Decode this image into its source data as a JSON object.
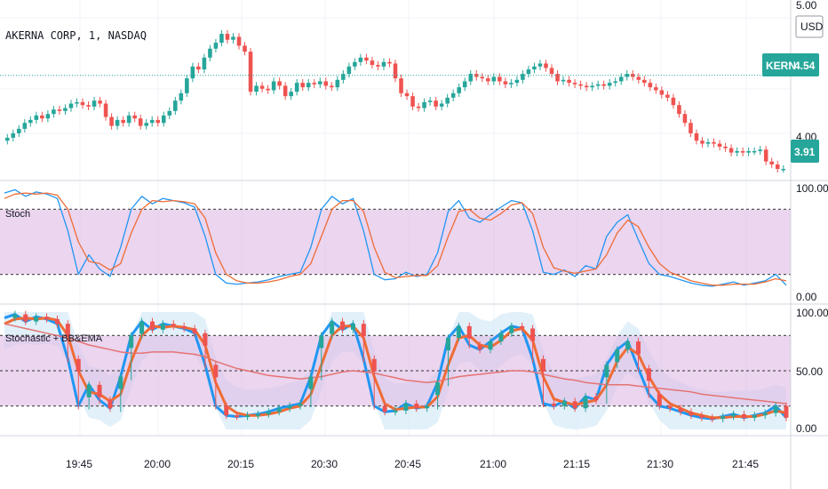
{
  "symbol_title": "AKERNA CORP, 1, NASDAQ",
  "currency": "USD",
  "last_ticker": "KERN",
  "last_price_label": "4.54",
  "current_price_label": "3.91",
  "price_axis_labels": [
    "5.00",
    "4.00"
  ],
  "osc_axis_labels": [
    "100.00",
    "0.00"
  ],
  "osc2_axis_labels": [
    "100.00",
    "50.00",
    "0.00"
  ],
  "panels": {
    "stoch": {
      "title": "Stoch"
    },
    "stoch_bb": {
      "title": "Stochastic + BB&EMA"
    }
  },
  "time_labels": [
    "19:45",
    "20:00",
    "20:15",
    "20:30",
    "20:45",
    "21:00",
    "21:15",
    "21:30",
    "21:45"
  ],
  "colors": {
    "up": "#26a69a",
    "down": "#ef5350",
    "k_line": "#2196f3",
    "d_line": "#ef6c36",
    "band_fill": "#e1bee7",
    "badge": "#26a69a",
    "ema": "#e57373"
  },
  "chart_data": [
    {
      "type": "candlestick",
      "title": "AKERNA CORP, 1, NASDAQ",
      "ylim": [
        3.85,
        5.0
      ],
      "close": [
        4.12,
        4.15,
        4.18,
        4.22,
        4.24,
        4.27,
        4.25,
        4.28,
        4.31,
        4.3,
        4.32,
        4.35,
        4.36,
        4.34,
        4.33,
        4.37,
        4.35,
        4.26,
        4.2,
        4.24,
        4.22,
        4.27,
        4.25,
        4.2,
        4.22,
        4.24,
        4.22,
        4.27,
        4.3,
        4.37,
        4.42,
        4.52,
        4.6,
        4.58,
        4.66,
        4.72,
        4.76,
        4.82,
        4.78,
        4.8,
        4.74,
        4.7,
        4.43,
        4.47,
        4.45,
        4.44,
        4.5,
        4.47,
        4.4,
        4.43,
        4.49,
        4.46,
        4.49,
        4.48,
        4.5,
        4.47,
        4.46,
        4.51,
        4.55,
        4.6,
        4.63,
        4.66,
        4.64,
        4.61,
        4.6,
        4.63,
        4.62,
        4.52,
        4.42,
        4.4,
        4.33,
        4.32,
        4.36,
        4.37,
        4.33,
        4.35,
        4.39,
        4.42,
        4.46,
        4.5,
        4.55,
        4.53,
        4.52,
        4.5,
        4.53,
        4.5,
        4.48,
        4.49,
        4.51,
        4.55,
        4.58,
        4.6,
        4.62,
        4.59,
        4.55,
        4.5,
        4.51,
        4.49,
        4.48,
        4.47,
        4.46,
        4.47,
        4.48,
        4.47,
        4.49,
        4.5,
        4.53,
        4.55,
        4.53,
        4.51,
        4.49,
        4.46,
        4.44,
        4.41,
        4.39,
        4.34,
        4.28,
        4.22,
        4.15,
        4.1,
        4.08,
        4.09,
        4.08,
        4.06,
        4.05,
        4.02,
        4.03,
        4.02,
        4.03,
        4.03,
        4.04,
        3.96,
        3.94,
        3.91,
        3.91
      ]
    },
    {
      "type": "line",
      "title": "Stoch",
      "ylim": [
        0,
        100
      ],
      "levels": [
        80,
        20
      ],
      "series": [
        {
          "values": [
            95,
            98,
            92,
            96,
            94,
            90,
            60,
            20,
            38,
            25,
            18,
            45,
            80,
            92,
            85,
            90,
            88,
            86,
            82,
            55,
            20,
            12,
            11,
            12,
            13,
            15,
            18,
            20,
            22,
            45,
            80,
            92,
            85,
            90,
            60,
            20,
            15,
            16,
            22,
            18,
            20,
            40,
            78,
            88,
            72,
            68,
            75,
            82,
            88,
            86,
            60,
            22,
            20,
            24,
            18,
            28,
            25,
            55,
            68,
            75,
            52,
            30,
            20,
            18,
            15,
            12,
            10,
            9,
            11,
            13,
            10,
            12,
            14,
            20,
            10
          ]
        },
        {
          "values": [
            90,
            94,
            95,
            94,
            95,
            93,
            80,
            50,
            32,
            30,
            24,
            30,
            58,
            80,
            88,
            87,
            88,
            87,
            85,
            72,
            40,
            20,
            14,
            12,
            12,
            13,
            15,
            18,
            20,
            30,
            55,
            80,
            88,
            88,
            78,
            45,
            22,
            17,
            18,
            19,
            19,
            28,
            55,
            78,
            80,
            72,
            70,
            76,
            84,
            86,
            76,
            45,
            26,
            23,
            21,
            23,
            25,
            38,
            58,
            70,
            64,
            45,
            30,
            22,
            18,
            14,
            12,
            10,
            10,
            11,
            11,
            11,
            13,
            16,
            14
          ]
        }
      ]
    },
    {
      "type": "line",
      "title": "Stochastic + BB&EMA",
      "ylim": [
        0,
        100
      ],
      "levels": [
        80,
        50,
        20
      ],
      "series": [
        {
          "values": [
            95,
            98,
            92,
            96,
            94,
            90,
            60,
            20,
            38,
            25,
            18,
            45,
            80,
            92,
            85,
            90,
            88,
            86,
            82,
            55,
            20,
            12,
            11,
            12,
            13,
            15,
            18,
            20,
            22,
            45,
            80,
            92,
            85,
            90,
            60,
            20,
            15,
            16,
            22,
            18,
            20,
            40,
            78,
            88,
            72,
            68,
            75,
            82,
            88,
            86,
            60,
            22,
            20,
            24,
            18,
            28,
            25,
            55,
            68,
            75,
            52,
            30,
            20,
            18,
            15,
            12,
            10,
            9,
            11,
            13,
            10,
            12,
            14,
            20,
            10
          ]
        },
        {
          "values": [
            90,
            94,
            95,
            94,
            95,
            93,
            80,
            50,
            32,
            30,
            24,
            30,
            58,
            80,
            88,
            87,
            88,
            87,
            85,
            72,
            40,
            20,
            14,
            12,
            12,
            13,
            15,
            18,
            20,
            30,
            55,
            80,
            88,
            88,
            78,
            45,
            22,
            17,
            18,
            19,
            19,
            28,
            55,
            78,
            80,
            72,
            70,
            76,
            84,
            86,
            76,
            45,
            26,
            23,
            21,
            23,
            25,
            38,
            58,
            70,
            64,
            45,
            30,
            22,
            18,
            14,
            12,
            10,
            10,
            11,
            11,
            11,
            13,
            16,
            14
          ]
        },
        {
          "values": [
            90,
            88,
            86,
            84,
            82,
            80,
            78,
            75,
            72,
            70,
            68,
            66,
            65,
            65,
            66,
            66,
            66,
            65,
            64,
            62,
            58,
            55,
            52,
            50,
            48,
            46,
            45,
            44,
            43,
            44,
            45,
            47,
            49,
            50,
            49,
            48,
            46,
            44,
            42,
            41,
            40,
            41,
            43,
            45,
            46,
            47,
            48,
            49,
            50,
            50,
            49,
            47,
            45,
            43,
            42,
            40,
            39,
            38,
            38,
            38,
            37,
            36,
            35,
            34,
            33,
            32,
            30,
            29,
            28,
            27,
            26,
            25,
            24,
            23,
            22
          ]
        }
      ]
    }
  ]
}
